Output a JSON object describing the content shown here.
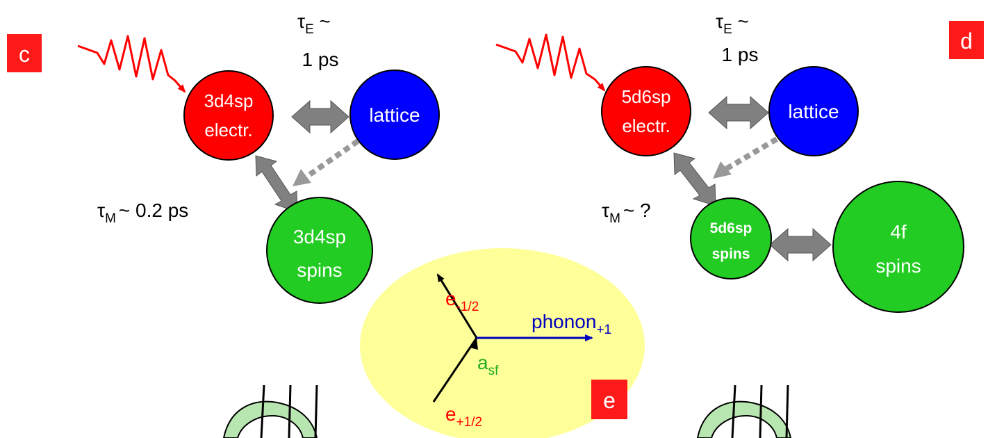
{
  "panel_c": {
    "label": "c",
    "electrons": {
      "line1": "3d4sp",
      "line2": "electr."
    },
    "lattice": "lattice",
    "spins": {
      "line1": "3d4sp",
      "line2": "spins"
    },
    "tau_e": {
      "symbol": "τ",
      "subscript": "E",
      "suffix": " ~",
      "value": "1 ps"
    },
    "tau_m": {
      "symbol": "τ",
      "subscript": "M",
      "value": "~ 0.2 ps"
    }
  },
  "panel_d": {
    "label": "d",
    "electrons": {
      "line1": "5d6sp",
      "line2": "electr."
    },
    "lattice": "lattice",
    "spins_small": {
      "line1": "5d6sp",
      "line2": "spins"
    },
    "spins_4f": {
      "line1": "4f",
      "line2": "spins"
    },
    "tau_e": {
      "symbol": "τ",
      "subscript": "E",
      "suffix": " ~",
      "value": "1 ps"
    },
    "tau_m": {
      "symbol": "τ",
      "subscript": "M",
      "value": "~ ?"
    }
  },
  "panel_e": {
    "label": "e",
    "e_minus": {
      "base": "e",
      "subscript": "-1/2"
    },
    "e_plus": {
      "base": "e",
      "subscript": "+1/2"
    },
    "phonon": {
      "base": "phonon",
      "subscript": "+1"
    },
    "asf": {
      "base": "a",
      "subscript": "sf"
    }
  },
  "colors": {
    "electron_circle": "#ff0000",
    "lattice_circle": "#0000ff",
    "spin_circle": "#22cc22",
    "label_box": "#ff1a1a",
    "arrow_gray": "#808080",
    "ellipse_fill": "#ffff99",
    "phonon_blue": "#0000c0",
    "electron_text_red": "#ff0000",
    "asf_green": "#22aa22",
    "ribbon_fill": "#b8e6b0"
  }
}
